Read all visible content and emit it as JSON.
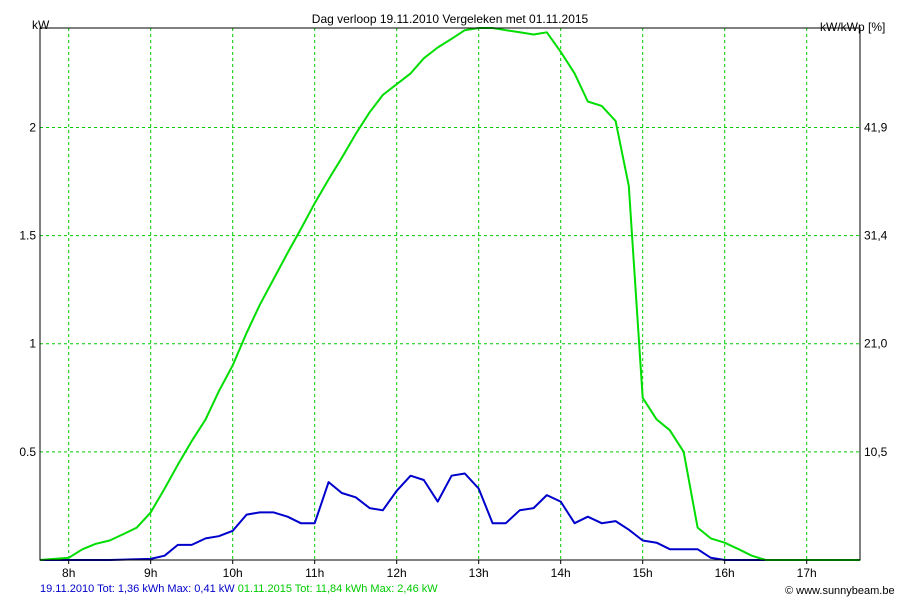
{
  "chart_data": {
    "type": "line",
    "title": "Dag  verloop 19.11.2010   Vergeleken met 01.11.2015",
    "y_left_label": "kW",
    "y_right_label": "kW/kWp [%]",
    "ylim": [
      0,
      2.46
    ],
    "xlim": [
      7.65,
      17.65
    ],
    "y_ticks_left": [
      {
        "v": 0.5,
        "label": "0.5"
      },
      {
        "v": 1,
        "label": "1"
      },
      {
        "v": 1.5,
        "label": "1.5"
      },
      {
        "v": 2,
        "label": "2"
      }
    ],
    "y_ticks_right": [
      {
        "v": 0.5,
        "label": "10,5"
      },
      {
        "v": 1,
        "label": "21,0"
      },
      {
        "v": 1.5,
        "label": "31,4"
      },
      {
        "v": 2,
        "label": "41,9"
      }
    ],
    "x_ticks": [
      {
        "v": 8,
        "label": "8h"
      },
      {
        "v": 9,
        "label": "9h"
      },
      {
        "v": 10,
        "label": "10h"
      },
      {
        "v": 11,
        "label": "11h"
      },
      {
        "v": 12,
        "label": "12h"
      },
      {
        "v": 13,
        "label": "13h"
      },
      {
        "v": 14,
        "label": "14h"
      },
      {
        "v": 15,
        "label": "15h"
      },
      {
        "v": 16,
        "label": "16h"
      },
      {
        "v": 17,
        "label": "17h"
      }
    ],
    "grid": true,
    "series": [
      {
        "name": "19.11.2010",
        "color": "#0000cc",
        "points": [
          [
            7.65,
            0
          ],
          [
            8.5,
            0
          ],
          [
            9.0,
            0.005
          ],
          [
            9.17,
            0.02
          ],
          [
            9.33,
            0.07
          ],
          [
            9.5,
            0.07
          ],
          [
            9.67,
            0.1
          ],
          [
            9.83,
            0.11
          ],
          [
            10.0,
            0.135
          ],
          [
            10.17,
            0.21
          ],
          [
            10.33,
            0.22
          ],
          [
            10.5,
            0.22
          ],
          [
            10.67,
            0.2
          ],
          [
            10.83,
            0.17
          ],
          [
            11.0,
            0.17
          ],
          [
            11.17,
            0.36
          ],
          [
            11.33,
            0.31
          ],
          [
            11.5,
            0.29
          ],
          [
            11.67,
            0.24
          ],
          [
            11.83,
            0.23
          ],
          [
            12.0,
            0.32
          ],
          [
            12.17,
            0.39
          ],
          [
            12.33,
            0.37
          ],
          [
            12.5,
            0.27
          ],
          [
            12.67,
            0.39
          ],
          [
            12.83,
            0.4
          ],
          [
            13.0,
            0.33
          ],
          [
            13.17,
            0.17
          ],
          [
            13.33,
            0.17
          ],
          [
            13.5,
            0.23
          ],
          [
            13.67,
            0.24
          ],
          [
            13.83,
            0.3
          ],
          [
            14.0,
            0.27
          ],
          [
            14.17,
            0.17
          ],
          [
            14.33,
            0.2
          ],
          [
            14.5,
            0.17
          ],
          [
            14.67,
            0.18
          ],
          [
            14.83,
            0.14
          ],
          [
            15.0,
            0.09
          ],
          [
            15.17,
            0.08
          ],
          [
            15.33,
            0.05
          ],
          [
            15.5,
            0.05
          ],
          [
            15.67,
            0.05
          ],
          [
            15.83,
            0.01
          ],
          [
            16.0,
            0
          ],
          [
            17.65,
            0
          ]
        ]
      },
      {
        "name": "01.11.2015",
        "color": "#00dd00",
        "points": [
          [
            7.65,
            0
          ],
          [
            8.0,
            0.01
          ],
          [
            8.17,
            0.05
          ],
          [
            8.33,
            0.075
          ],
          [
            8.5,
            0.09
          ],
          [
            8.67,
            0.12
          ],
          [
            8.83,
            0.15
          ],
          [
            9.0,
            0.22
          ],
          [
            9.17,
            0.33
          ],
          [
            9.33,
            0.44
          ],
          [
            9.5,
            0.55
          ],
          [
            9.67,
            0.65
          ],
          [
            9.83,
            0.78
          ],
          [
            10.0,
            0.9
          ],
          [
            10.17,
            1.05
          ],
          [
            10.33,
            1.18
          ],
          [
            10.5,
            1.3
          ],
          [
            10.67,
            1.42
          ],
          [
            10.83,
            1.53
          ],
          [
            11.0,
            1.65
          ],
          [
            11.17,
            1.76
          ],
          [
            11.33,
            1.86
          ],
          [
            11.5,
            1.97
          ],
          [
            11.67,
            2.07
          ],
          [
            11.83,
            2.15
          ],
          [
            12.0,
            2.2
          ],
          [
            12.17,
            2.25
          ],
          [
            12.33,
            2.32
          ],
          [
            12.5,
            2.37
          ],
          [
            12.67,
            2.41
          ],
          [
            12.83,
            2.45
          ],
          [
            13.0,
            2.46
          ],
          [
            13.17,
            2.46
          ],
          [
            13.33,
            2.45
          ],
          [
            13.5,
            2.44
          ],
          [
            13.67,
            2.43
          ],
          [
            13.83,
            2.44
          ],
          [
            14.0,
            2.35
          ],
          [
            14.17,
            2.25
          ],
          [
            14.33,
            2.12
          ],
          [
            14.5,
            2.1
          ],
          [
            14.67,
            2.03
          ],
          [
            14.83,
            1.73
          ],
          [
            15.0,
            0.75
          ],
          [
            15.17,
            0.65
          ],
          [
            15.33,
            0.6
          ],
          [
            15.5,
            0.5
          ],
          [
            15.67,
            0.15
          ],
          [
            15.83,
            0.1
          ],
          [
            16.0,
            0.08
          ],
          [
            16.17,
            0.05
          ],
          [
            16.33,
            0.02
          ],
          [
            16.5,
            0
          ],
          [
            17.65,
            0
          ]
        ]
      }
    ]
  },
  "footer": {
    "left_a": "19.11.2010 Tot: 1,36 kWh Max: 0,41 kW ",
    "left_b": "01.11.2015 Tot: 11,84 kWh Max: 2,46 kW",
    "right": "© www.sunnybeam.be"
  },
  "colors": {
    "grid": "#00cc00",
    "axis": "#000000",
    "blue": "#0000cc",
    "green": "#00dd00"
  }
}
